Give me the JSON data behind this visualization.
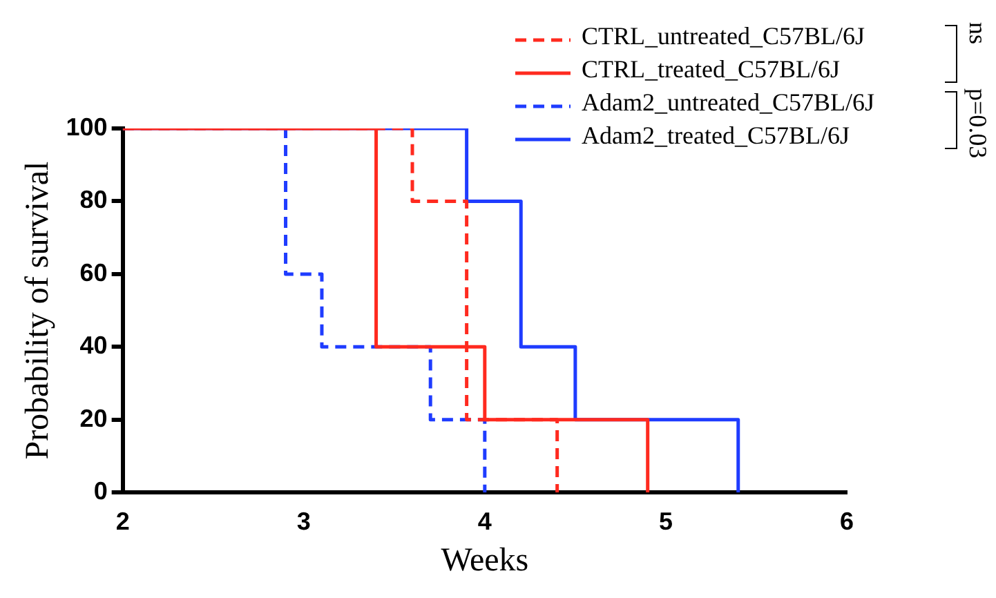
{
  "chart_data": {
    "type": "step",
    "xlabel": "Weeks",
    "ylabel": "Probability of survival",
    "xlim": [
      2,
      6
    ],
    "xticks": [
      2,
      3,
      4,
      5,
      6
    ],
    "ylim": [
      0,
      100
    ],
    "yticks": [
      0,
      20,
      40,
      60,
      80,
      100
    ],
    "grid": false,
    "legend": "top right",
    "marker": "none",
    "series": [
      {
        "name": "CTRL_untreated_C57BL/6J",
        "color": "#ff2a1f",
        "line_style": "dashed",
        "x": [
          2,
          3.6,
          3.9,
          4.4
        ],
        "values": [
          100,
          80,
          20,
          0
        ]
      },
      {
        "name": "CTRL_treated_C57BL/6J",
        "color": "#ff2a1f",
        "line_style": "solid",
        "x": [
          2,
          3.4,
          4.0,
          4.9
        ],
        "values": [
          100,
          40,
          20,
          0
        ]
      },
      {
        "name": "Adam2_untreated_C57BL/6J",
        "color": "#1f3cff",
        "line_style": "dashed",
        "x": [
          2,
          2.9,
          3.1,
          3.7,
          4.0
        ],
        "values": [
          100,
          60,
          40,
          20,
          0
        ]
      },
      {
        "name": "Adam2_treated_C57BL/6J",
        "color": "#1f3cff",
        "line_style": "solid",
        "x": [
          2,
          3.9,
          4.2,
          4.5,
          5.4
        ],
        "values": [
          100,
          80,
          40,
          20,
          0
        ]
      }
    ],
    "annotations": [
      "ns",
      "p=0.03"
    ]
  }
}
